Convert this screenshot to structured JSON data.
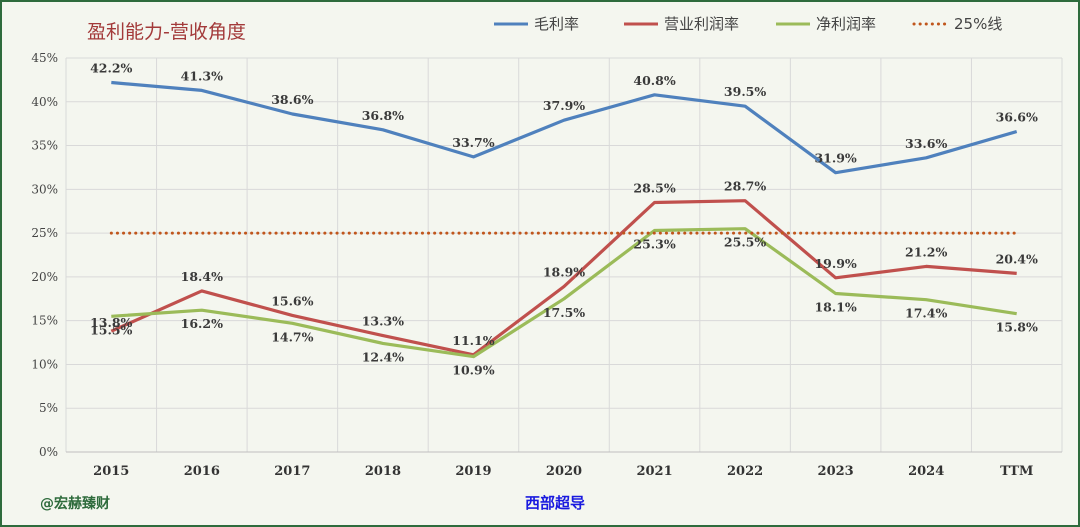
{
  "footer": {
    "watermark": "@宏赫臻财",
    "company": "西部超导"
  },
  "chart_data": {
    "type": "line",
    "title": "盈利能力-营收角度",
    "categories": [
      "2015",
      "2016",
      "2017",
      "2018",
      "2019",
      "2020",
      "2021",
      "2022",
      "2023",
      "2024",
      "TTM"
    ],
    "ylim": [
      0,
      45
    ],
    "yticks": [
      0,
      5,
      10,
      15,
      20,
      25,
      30,
      35,
      40,
      45
    ],
    "ytick_labels": [
      "0%",
      "5%",
      "10%",
      "15%",
      "20%",
      "25%",
      "30%",
      "35%",
      "40%",
      "45%"
    ],
    "series": [
      {
        "name": "毛利率",
        "color": "#4f81bd",
        "values": [
          42.2,
          41.3,
          38.6,
          36.8,
          33.7,
          37.9,
          40.8,
          39.5,
          31.9,
          33.6,
          36.6
        ],
        "labels": [
          "42.2%",
          "41.3%",
          "38.6%",
          "36.8%",
          "33.7%",
          "37.9%",
          "40.8%",
          "39.5%",
          "31.9%",
          "33.6%",
          "36.6%"
        ]
      },
      {
        "name": "营业利润率",
        "color": "#c0504d",
        "values": [
          13.8,
          18.4,
          15.6,
          13.3,
          11.1,
          18.9,
          28.5,
          28.7,
          19.9,
          21.2,
          20.4
        ],
        "labels": [
          "13.8%",
          "18.4%",
          "15.6%",
          "13.3%",
          "11.1%",
          "18.9%",
          "28.5%",
          "28.7%",
          "19.9%",
          "21.2%",
          "20.4%"
        ]
      },
      {
        "name": "净利润率",
        "color": "#9bbb59",
        "values": [
          15.5,
          16.2,
          14.7,
          12.4,
          10.9,
          17.5,
          25.3,
          25.5,
          18.1,
          17.4,
          15.8
        ],
        "labels": [
          "15.5%",
          "16.2%",
          "14.7%",
          "12.4%",
          "10.9%",
          "17.5%",
          "25.3%",
          "25.5%",
          "18.1%",
          "17.4%",
          "15.8%"
        ]
      },
      {
        "name": "25%线",
        "color": "#c0561c",
        "style": "dotted",
        "values": [
          25,
          25,
          25,
          25,
          25,
          25,
          25,
          25,
          25,
          25,
          25
        ]
      }
    ],
    "legend_position": "top-right",
    "grid": true
  }
}
